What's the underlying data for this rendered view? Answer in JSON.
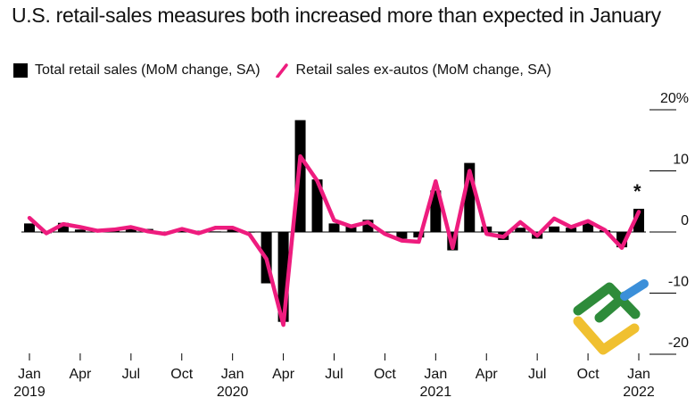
{
  "chart_data": {
    "type": "bar",
    "title": "U.S. retail-sales measures both increased more than expected in January",
    "xlabel": "",
    "ylabel": "",
    "ylim": [
      -20,
      20
    ],
    "y_ticks": [
      20,
      10,
      0,
      -10,
      -20
    ],
    "y_tick_labels": [
      "20%",
      "10",
      "0",
      "-10",
      "-20"
    ],
    "grid": false,
    "legend_position": "top-left",
    "annotation": "*",
    "x": [
      "2019-01",
      "2019-02",
      "2019-03",
      "2019-04",
      "2019-05",
      "2019-06",
      "2019-07",
      "2019-08",
      "2019-09",
      "2019-10",
      "2019-11",
      "2019-12",
      "2020-01",
      "2020-02",
      "2020-03",
      "2020-04",
      "2020-05",
      "2020-06",
      "2020-07",
      "2020-08",
      "2020-09",
      "2020-10",
      "2020-11",
      "2020-12",
      "2021-01",
      "2021-02",
      "2021-03",
      "2021-04",
      "2021-05",
      "2021-06",
      "2021-07",
      "2021-08",
      "2021-09",
      "2021-10",
      "2021-11",
      "2021-12",
      "2022-01"
    ],
    "x_ticks": [
      {
        "month_index": 0,
        "label": "Jan",
        "year": "2019"
      },
      {
        "month_index": 3,
        "label": "Apr",
        "year": ""
      },
      {
        "month_index": 6,
        "label": "Jul",
        "year": ""
      },
      {
        "month_index": 9,
        "label": "Oct",
        "year": ""
      },
      {
        "month_index": 12,
        "label": "Jan",
        "year": "2020"
      },
      {
        "month_index": 15,
        "label": "Apr",
        "year": ""
      },
      {
        "month_index": 18,
        "label": "Jul",
        "year": ""
      },
      {
        "month_index": 21,
        "label": "Oct",
        "year": ""
      },
      {
        "month_index": 24,
        "label": "Jan",
        "year": "2021"
      },
      {
        "month_index": 27,
        "label": "Apr",
        "year": ""
      },
      {
        "month_index": 30,
        "label": "Jul",
        "year": ""
      },
      {
        "month_index": 33,
        "label": "Oct",
        "year": ""
      },
      {
        "month_index": 36,
        "label": "Jan",
        "year": "2022"
      }
    ],
    "series": [
      {
        "name": "Total retail sales (MoM change, SA)",
        "type": "bar",
        "color": "#000000",
        "values": [
          1.4,
          -0.2,
          1.5,
          0.4,
          0.3,
          0.3,
          0.5,
          0.5,
          -0.3,
          0.3,
          0.2,
          0.1,
          0.6,
          -0.1,
          -8.4,
          -14.7,
          18.3,
          8.6,
          1.4,
          1.0,
          2.0,
          -0.1,
          -1.1,
          -0.9,
          6.8,
          -3.0,
          11.3,
          0.9,
          -1.3,
          0.7,
          -1.1,
          0.9,
          0.7,
          1.7,
          0.3,
          -2.5,
          3.8
        ]
      },
      {
        "name": "Retail sales ex-autos (MoM change, SA)",
        "type": "line",
        "color": "#ee1c7e",
        "values": [
          2.3,
          -0.2,
          1.3,
          0.8,
          0.2,
          0.4,
          0.8,
          0.1,
          -0.3,
          0.5,
          -0.2,
          0.7,
          0.7,
          -0.4,
          -4.4,
          -15.2,
          12.4,
          8.4,
          1.9,
          0.9,
          1.6,
          -0.3,
          -1.4,
          -1.6,
          8.3,
          -2.6,
          10.0,
          -0.3,
          -0.8,
          1.6,
          -0.6,
          2.2,
          0.8,
          1.8,
          0.3,
          -2.6,
          3.3
        ]
      }
    ]
  },
  "legend": {
    "bar_label": "Total retail sales (MoM change, SA)",
    "line_label": "Retail sales ex-autos (MoM change, SA)"
  },
  "watermark": {
    "icon": "logo-icon",
    "colors": [
      "#2e8b3a",
      "#3b8fd9",
      "#f0c030"
    ]
  }
}
